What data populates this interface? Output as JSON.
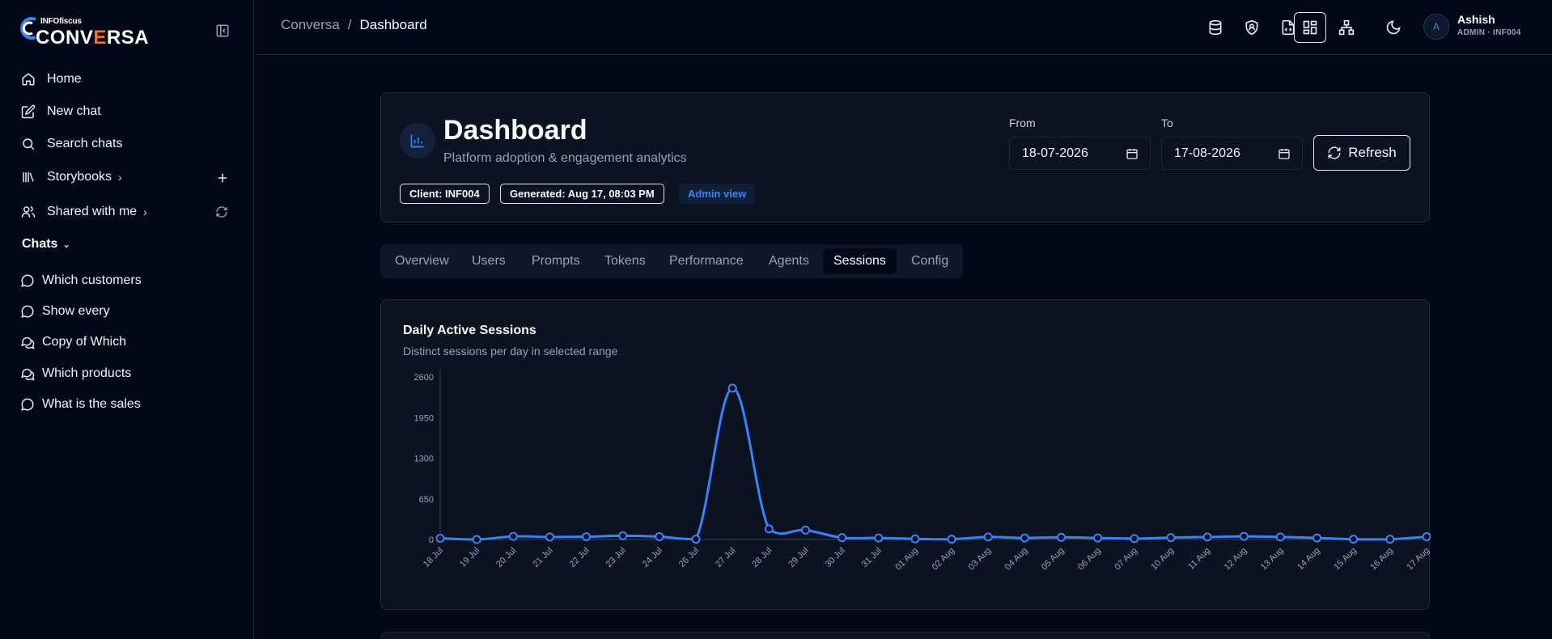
{
  "app": {
    "logo_small": "INFOfiscus",
    "logo_big_a": "CONV",
    "logo_big_b": "E",
    "logo_big_c": "RSA"
  },
  "sidebar": {
    "items": [
      {
        "label": "Home",
        "icon": "home-icon"
      },
      {
        "label": "New chat",
        "icon": "edit-icon"
      },
      {
        "label": "Search chats",
        "icon": "search-icon"
      },
      {
        "label": "Storybooks",
        "icon": "library-icon"
      },
      {
        "label": "Shared with me",
        "icon": "users-icon"
      }
    ],
    "chats_label": "Chats",
    "chats": [
      {
        "label": "Which customers",
        "icon": "chat-icon"
      },
      {
        "label": "Show every",
        "icon": "chat-icon"
      },
      {
        "label": "Copy of Which",
        "icon": "chats-icon"
      },
      {
        "label": "Which products",
        "icon": "chats-icon"
      },
      {
        "label": "What is the sales",
        "icon": "chat-icon"
      }
    ]
  },
  "header": {
    "breadcrumb_root": "Conversa",
    "breadcrumb_sep": "/",
    "breadcrumb_current": "Dashboard",
    "user_initial": "A",
    "user_name": "Ashish",
    "user_role": "ADMIN · INF004"
  },
  "dashboard": {
    "title": "Dashboard",
    "subtitle": "Platform adoption & engagement analytics",
    "badge_client": "Client: INF004",
    "badge_generated": "Generated: Aug 17, 08:03 PM",
    "badge_admin": "Admin view",
    "from_label": "From",
    "from_value": "18-07-2026",
    "to_label": "To",
    "to_value": "17-08-2026",
    "refresh_label": "Refresh"
  },
  "tabs": [
    {
      "label": "Overview"
    },
    {
      "label": "Users"
    },
    {
      "label": "Prompts"
    },
    {
      "label": "Tokens"
    },
    {
      "label": "Performance"
    },
    {
      "label": "Agents"
    },
    {
      "label": "Sessions",
      "active": true
    },
    {
      "label": "Config"
    }
  ],
  "colors": {
    "accent": "#3b82f6",
    "background": "#020817",
    "card": "#0b1222"
  },
  "chart_data": {
    "type": "line",
    "title": "Daily Active Sessions",
    "subtitle": "Distinct sessions per day in selected range",
    "ylim": [
      0,
      2600
    ],
    "yticks": [
      "2600",
      "1950",
      "1300",
      "650",
      "0"
    ],
    "categories": [
      "18 Jul",
      "19 Jul",
      "20 Jul",
      "21 Jul",
      "22 Jul",
      "23 Jul",
      "24 Jul",
      "26 Jul",
      "27 Jul",
      "28 Jul",
      "29 Jul",
      "30 Jul",
      "31 Jul",
      "01 Aug",
      "02 Aug",
      "03 Aug",
      "04 Aug",
      "05 Aug",
      "06 Aug",
      "07 Aug",
      "10 Aug",
      "11 Aug",
      "12 Aug",
      "13 Aug",
      "14 Aug",
      "15 Aug",
      "16 Aug",
      "17 Aug"
    ],
    "values": [
      20,
      0,
      50,
      40,
      45,
      60,
      45,
      5,
      2420,
      170,
      150,
      30,
      25,
      10,
      5,
      40,
      25,
      35,
      25,
      15,
      30,
      40,
      50,
      40,
      25,
      5,
      5,
      45
    ],
    "line_color": "#3b82f6"
  }
}
